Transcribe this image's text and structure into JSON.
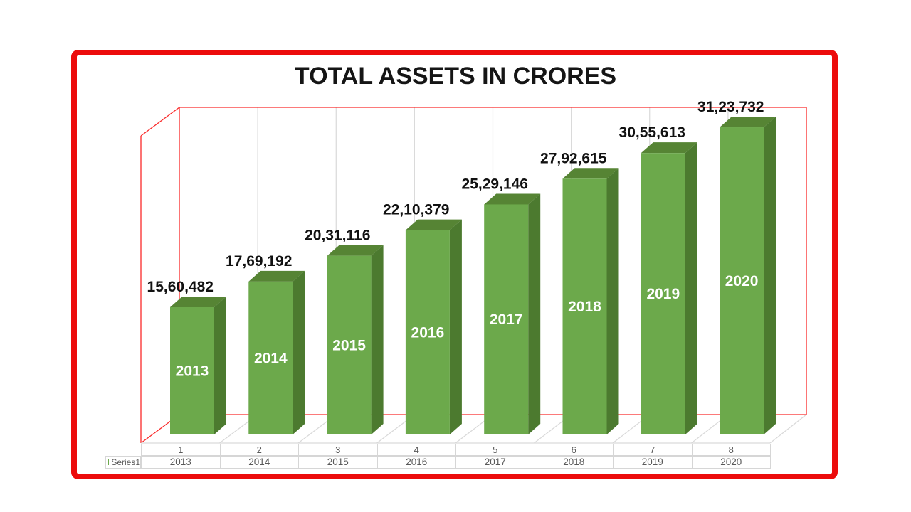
{
  "chart_data": {
    "type": "bar",
    "title": "TOTAL ASSETS IN CRORES",
    "categories": [
      "2013",
      "2014",
      "2015",
      "2016",
      "2017",
      "2018",
      "2019",
      "2020"
    ],
    "category_numbers": [
      "1",
      "2",
      "3",
      "4",
      "5",
      "6",
      "7",
      "8"
    ],
    "series": [
      {
        "name": "Series1",
        "values": [
          1560482,
          1769192,
          2031116,
          2210379,
          2529146,
          2792615,
          3055613,
          3123732
        ]
      }
    ],
    "value_labels": [
      "15,60,482",
      "17,69,192",
      "20,31,116",
      "22,10,379",
      "25,29,146",
      "27,92,615",
      "30,55,613",
      "31,23,732"
    ],
    "xlabel": "",
    "ylabel": "",
    "legend_position": "bottom-left",
    "grid": true,
    "style": "3d-column",
    "colors": {
      "bar_front": "#6ca94b",
      "bar_top": "#568434",
      "bar_side": "#4c7a2f",
      "axis_line_red": "#fa2a2a",
      "gridline_gray": "#d9d9d9",
      "value_label_color": "#111111",
      "year_label_color": "#ffffff",
      "frame_border_red": "#ec0c0c",
      "table_text": "#595959"
    }
  },
  "table": {
    "legend_label": "Series1",
    "row_numbers": [
      "1",
      "2",
      "3",
      "4",
      "5",
      "6",
      "7",
      "8"
    ],
    "row_years": [
      "2013",
      "2014",
      "2015",
      "2016",
      "2017",
      "2018",
      "2019",
      "2020"
    ]
  }
}
